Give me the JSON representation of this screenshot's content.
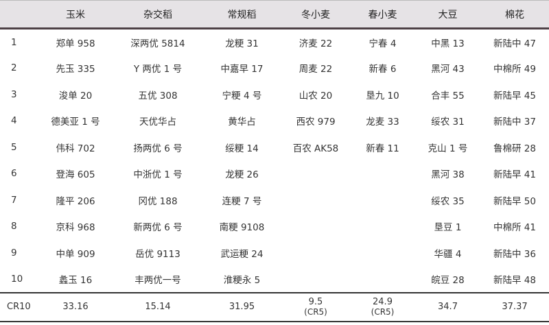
{
  "headers": [
    "",
    "玉米",
    "杂交稻",
    "常规稻",
    "冬小麦",
    "春小麦",
    "大豆",
    "棉花"
  ],
  "rows": [
    [
      "1",
      "郑单 958",
      "深两优 5814",
      "龙粳 31",
      "济麦 22",
      "宁春 4",
      "中黑 13",
      "新陆中 47"
    ],
    [
      "2",
      "先玉 335",
      "Y 两优 1 号",
      "中嘉早 17",
      "周麦 22",
      "新春 6",
      "黑河 43",
      "中棉所 49"
    ],
    [
      "3",
      "浚单 20",
      "五优 308",
      "宁粳 4 号",
      "山农 20",
      "垦九 10",
      "合丰 55",
      "新陆早 45"
    ],
    [
      "4",
      "德美亚 1 号",
      "天优华占",
      "黄华占",
      "西农 979",
      "龙麦 33",
      "绥农 31",
      "新陆中 37"
    ],
    [
      "5",
      "伟科 702",
      "扬两优 6 号",
      "绥粳 14",
      "百农 AK58",
      "新春 11",
      "克山 1 号",
      "鲁棉研 28"
    ],
    [
      "6",
      "登海 605",
      "中浙优 1 号",
      "龙粳 26",
      "",
      "",
      "黑河 38",
      "新陆早 41"
    ],
    [
      "7",
      "隆平 206",
      "冈优 188",
      "连粳 7 号",
      "",
      "",
      "绥农 35",
      "新陆早 50"
    ],
    [
      "8",
      "京科 968",
      "新两优 6 号",
      "南粳 9108",
      "",
      "",
      "垦豆 1",
      "中棉所 41"
    ],
    [
      "9",
      "中单 909",
      "岳优 9113",
      "武运粳 24",
      "",
      "",
      "华疆 4",
      "新陆中 36"
    ],
    [
      "10",
      "蠡玉 16",
      "丰两优一号",
      "淮粳永 5",
      "",
      "",
      "皖豆 28",
      "新陆早 48"
    ]
  ],
  "cr_row": {
    "label": "CR10",
    "values": [
      "33.16",
      "15.14",
      "31.95",
      "9.5",
      "24.9",
      "34.7",
      "37.37"
    ],
    "notes": [
      "",
      "",
      "",
      "(CR5)",
      "(CR5)",
      "",
      ""
    ]
  }
}
